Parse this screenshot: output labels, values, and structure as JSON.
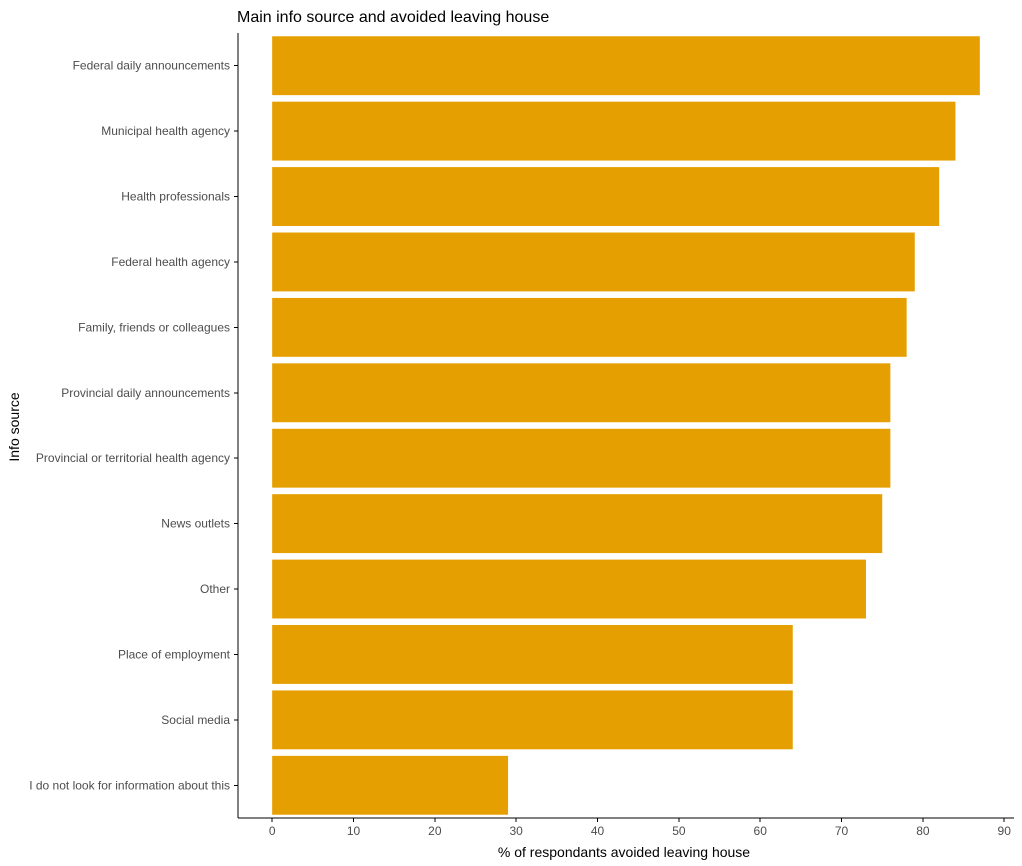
{
  "chart_data": {
    "type": "bar",
    "orientation": "horizontal",
    "title": "Main info source and avoided leaving house",
    "xlabel": "% of respondants avoided leaving house",
    "ylabel": "Info source",
    "categories": [
      "Federal daily announcements",
      "Municipal health agency",
      "Health professionals",
      "Federal health agency",
      "Family, friends or colleagues",
      "Provincial daily announcements",
      "Provincial or territorial health agency",
      "News outlets",
      "Other",
      "Place of employment",
      "Social media",
      "I do not look for information about this"
    ],
    "values": [
      87,
      84,
      82,
      79,
      78,
      76,
      76,
      75,
      73,
      64,
      64,
      29
    ],
    "xlim": [
      -4.2,
      91.2
    ],
    "xticks": [
      0,
      10,
      20,
      30,
      40,
      50,
      60,
      70,
      80,
      90
    ],
    "grid": false,
    "legend": "none",
    "bar_color": "#E69F00"
  }
}
